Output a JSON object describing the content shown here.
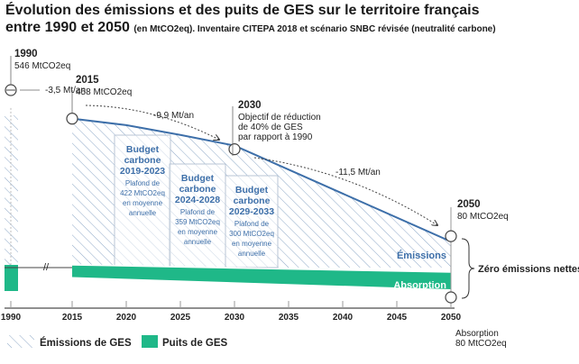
{
  "title_line1": "Évolution des émissions et des puits de GES sur le territoire français",
  "title_line2_bold": "entre 1990 et 2050",
  "title_line2_sub": "(en MtCO2eq). Inventaire CITEPA 2018 et scénario SNBC révisée (neutralité carbone)",
  "colors": {
    "emissions": "#3d6fa9",
    "hatch": "#8fa9c8",
    "sinks": "#1fb888",
    "budget_border": "#b9c6d6",
    "axis": "#222222"
  },
  "chart_data": {
    "type": "area",
    "x_ticks": [
      1990,
      2015,
      2020,
      2025,
      2030,
      2035,
      2040,
      2045,
      2050
    ],
    "xlim": [
      1990,
      2050
    ],
    "series": [
      {
        "name": "Émissions de GES",
        "x": [
          1990,
          2015,
          2020,
          2025,
          2030,
          2050
        ],
        "values": [
          546,
          458,
          438,
          408,
          375,
          80
        ]
      },
      {
        "name": "Puits de GES",
        "x": [
          1990,
          2015,
          2050
        ],
        "values": [
          -45,
          -45,
          -80
        ]
      }
    ],
    "annotations": {
      "y1990": {
        "year": "1990",
        "value": "546 MtCO2eq"
      },
      "y2015": {
        "year": "2015",
        "value": "458 MtCO2eq"
      },
      "y2030": {
        "year": "2030",
        "line1": "Objectif de réduction",
        "line2": "de 40% de GES",
        "line3": "par rapport à 1990"
      },
      "y2050": {
        "year": "2050",
        "value": "80 MtCO2eq"
      },
      "absorption": {
        "label": "Absorption",
        "value": "80 MtCO2eq"
      },
      "rate1": "-3,5 Mt/an",
      "rate2": "-9,9 Mt/an",
      "rate3": "-11,5 Mt/an",
      "emissions_label": "Émissions",
      "absorption_label": "Absorption",
      "neutral": "Zéro émissions nettes"
    },
    "budgets": [
      {
        "l1": "Budget",
        "l2": "carbone",
        "l3": "2019-2023",
        "l4": "Plafond de",
        "l5": "422 MtCO2eq",
        "l6": "en moyenne",
        "l7": "annuelle"
      },
      {
        "l1": "Budget",
        "l2": "carbone",
        "l3": "2024-2028",
        "l4": "Plafond de",
        "l5": "359 MtCO2eq",
        "l6": "en moyenne",
        "l7": "annuelle"
      },
      {
        "l1": "Budget",
        "l2": "carbone",
        "l3": "2029-2033",
        "l4": "Plafond de",
        "l5": "300 MtCO2eq",
        "l6": "en moyenne",
        "l7": "annuelle"
      }
    ],
    "legend": {
      "emissions": "Émissions de GES",
      "sinks": "Puits de GES"
    }
  }
}
